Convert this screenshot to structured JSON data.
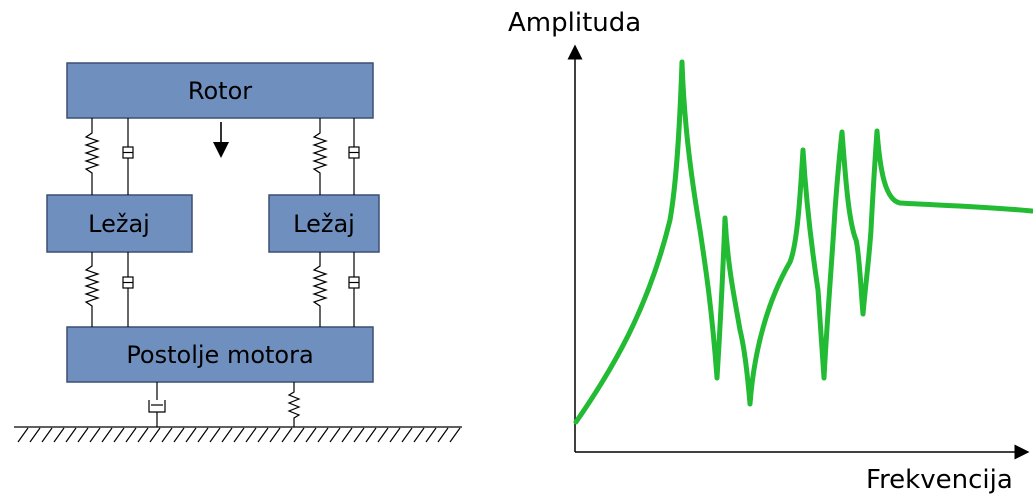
{
  "diagram": {
    "rotor_label": "Rotor",
    "bearing_left_label": "Ležaj",
    "bearing_right_label": "Ležaj",
    "base_label": "Postolje motora",
    "block_fill": "#6f8fbf",
    "block_stroke": "#3b4f72"
  },
  "chart": {
    "ylabel": "Amplituda",
    "xlabel": "Frekvencija",
    "curve_color": "#22bb33"
  }
}
